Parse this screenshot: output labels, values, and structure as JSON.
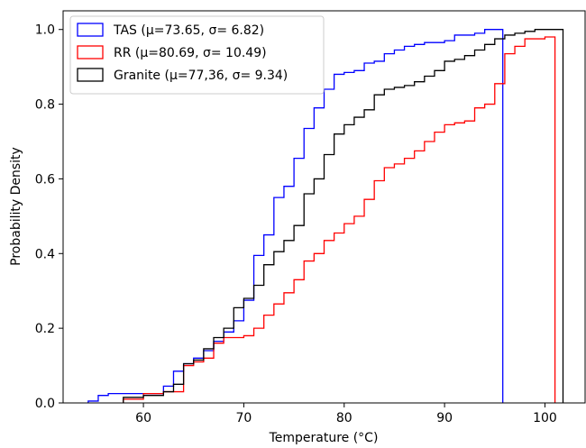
{
  "chart_data": {
    "type": "line",
    "title": "",
    "xlabel": "Temperature (°C)",
    "ylabel": "Probability Density",
    "xlim": [
      52,
      104
    ],
    "ylim": [
      0,
      1.05
    ],
    "xticks": [
      "60",
      "70",
      "80",
      "90",
      "100"
    ],
    "yticks": [
      "0.0",
      "0.2",
      "0.4",
      "0.6",
      "0.8",
      "1.0"
    ],
    "grid": false,
    "legend_position": "upper-left",
    "series": [
      {
        "name": "TAS (μ=73.65, σ= 6.82)",
        "color": "#0000ff",
        "x": [
          54.5,
          55.5,
          56.5,
          58,
          60,
          62,
          63,
          64,
          65,
          66,
          67,
          68,
          69,
          70,
          71,
          72,
          73,
          74,
          75,
          76,
          77,
          78,
          79,
          80,
          81,
          82,
          83,
          84,
          85,
          86,
          87,
          88,
          89,
          90,
          91,
          92,
          93,
          94,
          95,
          95.8
        ],
        "y": [
          0.005,
          0.02,
          0.025,
          0.025,
          0.025,
          0.045,
          0.085,
          0.105,
          0.12,
          0.14,
          0.165,
          0.19,
          0.22,
          0.275,
          0.395,
          0.45,
          0.55,
          0.58,
          0.655,
          0.735,
          0.79,
          0.84,
          0.88,
          0.885,
          0.89,
          0.91,
          0.915,
          0.935,
          0.945,
          0.955,
          0.96,
          0.965,
          0.965,
          0.97,
          0.985,
          0.985,
          0.99,
          1.0,
          1.0,
          0.0
        ],
        "end_x": 95.8
      },
      {
        "name": "RR (μ=80.69, σ= 10.49)",
        "color": "#ff0000",
        "x": [
          58,
          60,
          62,
          64,
          65,
          66,
          67,
          68,
          70,
          71,
          72,
          73,
          74,
          75,
          76,
          77,
          78,
          79,
          80,
          81,
          82,
          83,
          84,
          85,
          86,
          87,
          88,
          89,
          90,
          91,
          92,
          93,
          94,
          95,
          96,
          97,
          98,
          99,
          100,
          101
        ],
        "y": [
          0.01,
          0.025,
          0.03,
          0.1,
          0.11,
          0.12,
          0.16,
          0.175,
          0.18,
          0.2,
          0.235,
          0.265,
          0.295,
          0.33,
          0.38,
          0.4,
          0.435,
          0.455,
          0.48,
          0.5,
          0.545,
          0.595,
          0.63,
          0.64,
          0.655,
          0.675,
          0.7,
          0.725,
          0.745,
          0.75,
          0.755,
          0.79,
          0.8,
          0.855,
          0.935,
          0.955,
          0.975,
          0.975,
          0.98,
          0.0
        ],
        "end_x": 101
      },
      {
        "name": "Granite (μ=77,36, σ= 9.34)",
        "color": "#000000",
        "x": [
          58,
          60,
          62,
          63,
          64,
          65,
          66,
          67,
          68,
          69,
          70,
          71,
          72,
          73,
          74,
          75,
          76,
          77,
          78,
          79,
          80,
          81,
          82,
          83,
          84,
          85,
          86,
          87,
          88,
          89,
          90,
          91,
          92,
          93,
          94,
          95,
          96,
          97,
          98,
          99,
          100,
          101,
          101.8
        ],
        "y": [
          0.015,
          0.02,
          0.03,
          0.05,
          0.105,
          0.115,
          0.145,
          0.175,
          0.2,
          0.255,
          0.28,
          0.315,
          0.37,
          0.405,
          0.435,
          0.475,
          0.56,
          0.6,
          0.665,
          0.72,
          0.745,
          0.765,
          0.785,
          0.825,
          0.84,
          0.845,
          0.85,
          0.86,
          0.875,
          0.89,
          0.915,
          0.92,
          0.93,
          0.945,
          0.96,
          0.975,
          0.985,
          0.99,
          0.995,
          1.0,
          1.0,
          1.0,
          0.0
        ],
        "end_x": 101.8
      }
    ]
  }
}
